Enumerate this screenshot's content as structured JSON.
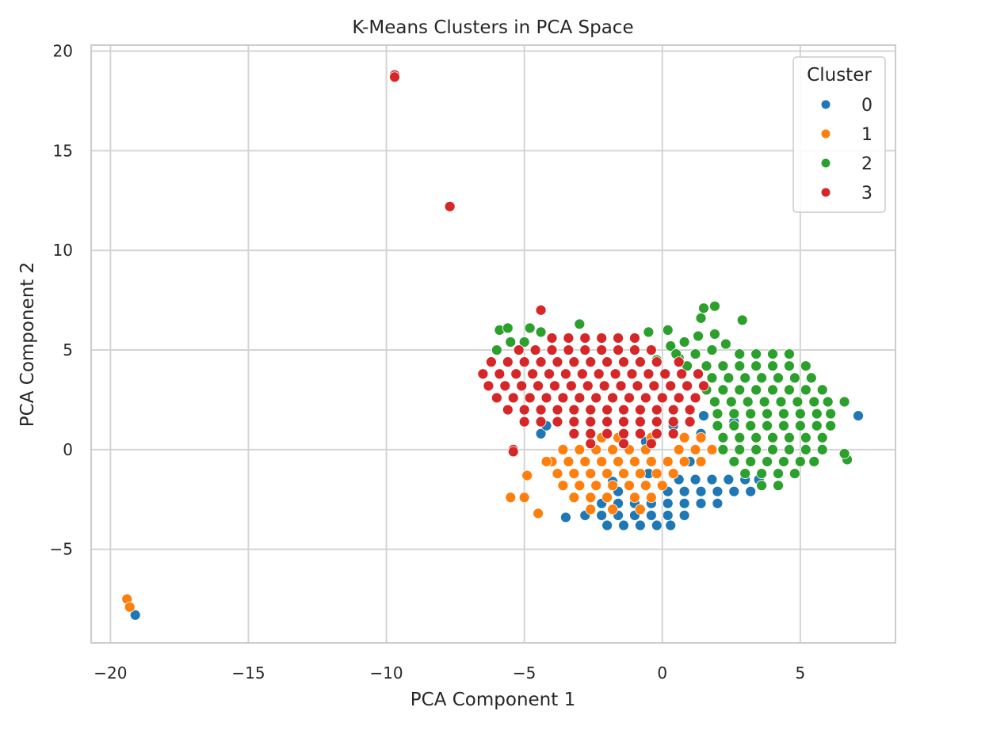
{
  "chart_data": {
    "type": "scatter",
    "title": "K-Means Clusters in PCA Space",
    "xlabel": "PCA Component 1",
    "ylabel": "PCA Component 2",
    "xlim": [
      -20.7,
      8.45
    ],
    "ylim": [
      -9.7,
      20.3
    ],
    "xticks": [
      -20,
      -15,
      -10,
      -5,
      0,
      5
    ],
    "yticks": [
      -5,
      0,
      5,
      10,
      15,
      20
    ],
    "xtick_labels": [
      "−20",
      "−15",
      "−10",
      "−5",
      "0",
      "5"
    ],
    "ytick_labels": [
      "−5",
      "0",
      "5",
      "10",
      "15",
      "20"
    ],
    "grid": true,
    "legend": {
      "title": "Cluster",
      "placement": "top-right"
    },
    "series": [
      {
        "name": "0",
        "color": "#1f77b4",
        "points": [
          [
            0.6,
            -1.5
          ],
          [
            1.2,
            -1.5
          ],
          [
            1.8,
            -1.5
          ],
          [
            2.4,
            -1.5
          ],
          [
            3.0,
            -1.5
          ],
          [
            3.5,
            -1.5
          ],
          [
            -1.6,
            -2.1
          ],
          [
            0.2,
            -2.1
          ],
          [
            0.8,
            -2.1
          ],
          [
            1.4,
            -2.1
          ],
          [
            2.0,
            -2.1
          ],
          [
            2.6,
            -2.1
          ],
          [
            3.2,
            -2.1
          ],
          [
            -2.2,
            -2.7
          ],
          [
            -1.6,
            -2.7
          ],
          [
            -1.0,
            -2.7
          ],
          [
            -0.4,
            -2.7
          ],
          [
            0.2,
            -2.7
          ],
          [
            0.8,
            -2.7
          ],
          [
            1.4,
            -2.7
          ],
          [
            2.0,
            -2.7
          ],
          [
            -2.8,
            -3.3
          ],
          [
            -2.2,
            -3.3
          ],
          [
            -1.6,
            -3.3
          ],
          [
            -1.0,
            -3.3
          ],
          [
            -0.4,
            -3.3
          ],
          [
            0.2,
            -3.3
          ],
          [
            0.8,
            -3.3
          ],
          [
            -2.0,
            -3.8
          ],
          [
            -1.4,
            -3.8
          ],
          [
            -0.8,
            -3.8
          ],
          [
            -0.2,
            -3.8
          ],
          [
            0.3,
            -3.8
          ],
          [
            -4.4,
            0.8
          ],
          [
            -4.2,
            1.2
          ],
          [
            -0.6,
            0.4
          ],
          [
            0.4,
            1.2
          ],
          [
            2.6,
            1.4
          ],
          [
            1.4,
            0.8
          ],
          [
            -3.5,
            -3.4
          ],
          [
            -1.8,
            -1.6
          ],
          [
            -0.5,
            -1.2
          ],
          [
            1.0,
            -0.6
          ],
          [
            1.5,
            1.7
          ],
          [
            -2.8,
            -0.6
          ],
          [
            7.1,
            1.7
          ],
          [
            -19.1,
            -8.3
          ]
        ]
      },
      {
        "name": "1",
        "color": "#ff7f0e",
        "points": [
          [
            -2.2,
            0.6
          ],
          [
            -1.6,
            0.6
          ],
          [
            -0.4,
            0.6
          ],
          [
            0.8,
            0.6
          ],
          [
            1.4,
            0.6
          ],
          [
            -3.6,
            0.0
          ],
          [
            -3.0,
            0.0
          ],
          [
            -2.4,
            0.0
          ],
          [
            -1.8,
            0.0
          ],
          [
            -1.2,
            0.0
          ],
          [
            -0.6,
            0.0
          ],
          [
            0.6,
            0.0
          ],
          [
            1.2,
            0.0
          ],
          [
            1.8,
            0.0
          ],
          [
            2.2,
            0.0
          ],
          [
            -4.0,
            -0.6
          ],
          [
            -3.4,
            -0.6
          ],
          [
            -2.8,
            -0.6
          ],
          [
            -2.2,
            -0.6
          ],
          [
            -1.6,
            -0.6
          ],
          [
            -1.0,
            -0.6
          ],
          [
            -0.4,
            -0.6
          ],
          [
            0.2,
            -0.6
          ],
          [
            0.8,
            -0.6
          ],
          [
            1.4,
            -0.6
          ],
          [
            -3.8,
            -1.2
          ],
          [
            -3.2,
            -1.2
          ],
          [
            -2.6,
            -1.2
          ],
          [
            -2.0,
            -1.2
          ],
          [
            -1.4,
            -1.2
          ],
          [
            -0.8,
            -1.2
          ],
          [
            -0.2,
            -1.2
          ],
          [
            0.4,
            -1.2
          ],
          [
            -3.6,
            -1.8
          ],
          [
            -3.0,
            -1.8
          ],
          [
            -2.4,
            -1.8
          ],
          [
            -1.8,
            -1.8
          ],
          [
            -1.2,
            -1.8
          ],
          [
            -0.6,
            -1.8
          ],
          [
            0.0,
            -1.8
          ],
          [
            -3.2,
            -2.4
          ],
          [
            -2.6,
            -2.4
          ],
          [
            -2.0,
            -2.4
          ],
          [
            -1.0,
            -2.4
          ],
          [
            -0.4,
            -2.4
          ],
          [
            -2.6,
            -3.0
          ],
          [
            -1.8,
            -3.0
          ],
          [
            -0.8,
            -3.0
          ],
          [
            -5.5,
            -2.4
          ],
          [
            -5.0,
            -2.4
          ],
          [
            -4.5,
            -3.2
          ],
          [
            -4.9,
            -1.3
          ],
          [
            -4.2,
            -0.6
          ],
          [
            -19.4,
            -7.5
          ],
          [
            -19.3,
            -7.9
          ]
        ]
      },
      {
        "name": "2",
        "color": "#2ca02c",
        "points": [
          [
            2.8,
            4.8
          ],
          [
            3.4,
            4.8
          ],
          [
            4.0,
            4.8
          ],
          [
            4.6,
            4.8
          ],
          [
            1.6,
            4.2
          ],
          [
            2.2,
            4.2
          ],
          [
            2.8,
            4.2
          ],
          [
            3.4,
            4.2
          ],
          [
            4.0,
            4.2
          ],
          [
            4.6,
            4.2
          ],
          [
            5.2,
            4.2
          ],
          [
            1.8,
            3.6
          ],
          [
            2.4,
            3.6
          ],
          [
            3.0,
            3.6
          ],
          [
            3.6,
            3.6
          ],
          [
            4.2,
            3.6
          ],
          [
            4.8,
            3.6
          ],
          [
            5.4,
            3.6
          ],
          [
            1.6,
            3.0
          ],
          [
            2.2,
            3.0
          ],
          [
            2.8,
            3.0
          ],
          [
            3.4,
            3.0
          ],
          [
            4.0,
            3.0
          ],
          [
            4.6,
            3.0
          ],
          [
            5.2,
            3.0
          ],
          [
            5.8,
            3.0
          ],
          [
            1.9,
            2.4
          ],
          [
            2.5,
            2.4
          ],
          [
            3.1,
            2.4
          ],
          [
            3.7,
            2.4
          ],
          [
            4.3,
            2.4
          ],
          [
            4.9,
            2.4
          ],
          [
            5.5,
            2.4
          ],
          [
            6.0,
            2.4
          ],
          [
            2.0,
            1.8
          ],
          [
            2.6,
            1.8
          ],
          [
            3.2,
            1.8
          ],
          [
            3.8,
            1.8
          ],
          [
            4.4,
            1.8
          ],
          [
            5.0,
            1.8
          ],
          [
            5.6,
            1.8
          ],
          [
            6.1,
            1.8
          ],
          [
            2.0,
            1.2
          ],
          [
            2.6,
            1.2
          ],
          [
            3.2,
            1.2
          ],
          [
            3.8,
            1.2
          ],
          [
            4.4,
            1.2
          ],
          [
            5.0,
            1.2
          ],
          [
            5.6,
            1.2
          ],
          [
            6.1,
            1.2
          ],
          [
            2.2,
            0.6
          ],
          [
            2.8,
            0.6
          ],
          [
            3.4,
            0.6
          ],
          [
            4.0,
            0.6
          ],
          [
            4.6,
            0.6
          ],
          [
            5.2,
            0.6
          ],
          [
            5.8,
            0.6
          ],
          [
            2.2,
            0.0
          ],
          [
            2.8,
            0.0
          ],
          [
            3.4,
            0.0
          ],
          [
            4.0,
            0.0
          ],
          [
            4.6,
            0.0
          ],
          [
            5.2,
            0.0
          ],
          [
            5.8,
            0.0
          ],
          [
            2.6,
            -0.6
          ],
          [
            3.2,
            -0.6
          ],
          [
            3.8,
            -0.6
          ],
          [
            4.4,
            -0.6
          ],
          [
            5.0,
            -0.6
          ],
          [
            5.5,
            -0.6
          ],
          [
            3.0,
            -1.2
          ],
          [
            3.6,
            -1.2
          ],
          [
            4.2,
            -1.2
          ],
          [
            4.8,
            -1.2
          ],
          [
            3.6,
            -1.8
          ],
          [
            4.2,
            -1.8
          ],
          [
            0.3,
            5.2
          ],
          [
            0.8,
            5.4
          ],
          [
            1.2,
            4.8
          ],
          [
            0.6,
            4.6
          ],
          [
            1.8,
            5.0
          ],
          [
            2.3,
            5.3
          ],
          [
            -0.2,
            4.5
          ],
          [
            0.9,
            4.2
          ],
          [
            -5.9,
            6.0
          ],
          [
            -5.6,
            6.1
          ],
          [
            -6.0,
            5.0
          ],
          [
            -5.5,
            5.4
          ],
          [
            -4.8,
            6.1
          ],
          [
            -4.4,
            5.9
          ],
          [
            -5.0,
            5.4
          ],
          [
            -3.0,
            6.3
          ],
          [
            -0.5,
            5.9
          ],
          [
            0.2,
            6.0
          ],
          [
            1.5,
            7.1
          ],
          [
            1.9,
            7.2
          ],
          [
            1.4,
            6.6
          ],
          [
            1.9,
            5.8
          ],
          [
            2.9,
            6.5
          ],
          [
            1.3,
            5.7
          ],
          [
            0.5,
            4.8
          ],
          [
            6.6,
            2.4
          ],
          [
            6.7,
            -0.5
          ],
          [
            6.6,
            -0.2
          ],
          [
            1.2,
            4.8
          ]
        ]
      },
      {
        "name": "3",
        "color": "#d62728",
        "points": [
          [
            -4.0,
            5.6
          ],
          [
            -3.4,
            5.6
          ],
          [
            -2.8,
            5.6
          ],
          [
            -2.2,
            5.6
          ],
          [
            -1.6,
            5.6
          ],
          [
            -1.0,
            5.6
          ],
          [
            -5.2,
            5.0
          ],
          [
            -4.6,
            5.0
          ],
          [
            -4.0,
            5.0
          ],
          [
            -3.4,
            5.0
          ],
          [
            -2.8,
            5.0
          ],
          [
            -2.2,
            5.0
          ],
          [
            -1.6,
            5.0
          ],
          [
            -1.0,
            5.0
          ],
          [
            -0.4,
            5.0
          ],
          [
            -6.2,
            4.4
          ],
          [
            -5.6,
            4.4
          ],
          [
            -5.0,
            4.4
          ],
          [
            -4.4,
            4.4
          ],
          [
            -3.8,
            4.4
          ],
          [
            -3.2,
            4.4
          ],
          [
            -2.6,
            4.4
          ],
          [
            -2.0,
            4.4
          ],
          [
            -1.4,
            4.4
          ],
          [
            -0.8,
            4.4
          ],
          [
            -0.2,
            4.4
          ],
          [
            0.6,
            4.4
          ],
          [
            -6.5,
            3.8
          ],
          [
            -5.9,
            3.8
          ],
          [
            -5.3,
            3.8
          ],
          [
            -4.7,
            3.8
          ],
          [
            -4.1,
            3.8
          ],
          [
            -3.5,
            3.8
          ],
          [
            -2.9,
            3.8
          ],
          [
            -2.3,
            3.8
          ],
          [
            -1.7,
            3.8
          ],
          [
            -1.1,
            3.8
          ],
          [
            -0.5,
            3.8
          ],
          [
            0.1,
            3.8
          ],
          [
            0.7,
            3.8
          ],
          [
            1.3,
            3.8
          ],
          [
            -6.3,
            3.2
          ],
          [
            -5.7,
            3.2
          ],
          [
            -5.1,
            3.2
          ],
          [
            -4.5,
            3.2
          ],
          [
            -3.9,
            3.2
          ],
          [
            -3.3,
            3.2
          ],
          [
            -2.7,
            3.2
          ],
          [
            -2.1,
            3.2
          ],
          [
            -1.5,
            3.2
          ],
          [
            -0.9,
            3.2
          ],
          [
            -0.3,
            3.2
          ],
          [
            0.3,
            3.2
          ],
          [
            0.9,
            3.2
          ],
          [
            1.5,
            3.2
          ],
          [
            -6.0,
            2.6
          ],
          [
            -5.4,
            2.6
          ],
          [
            -4.8,
            2.6
          ],
          [
            -4.2,
            2.6
          ],
          [
            -3.6,
            2.6
          ],
          [
            -3.0,
            2.6
          ],
          [
            -2.4,
            2.6
          ],
          [
            -1.8,
            2.6
          ],
          [
            -1.2,
            2.6
          ],
          [
            -0.6,
            2.6
          ],
          [
            0.0,
            2.6
          ],
          [
            0.6,
            2.6
          ],
          [
            1.2,
            2.6
          ],
          [
            -5.6,
            2.0
          ],
          [
            -5.0,
            2.0
          ],
          [
            -4.4,
            2.0
          ],
          [
            -3.8,
            2.0
          ],
          [
            -3.2,
            2.0
          ],
          [
            -2.6,
            2.0
          ],
          [
            -2.0,
            2.0
          ],
          [
            -1.4,
            2.0
          ],
          [
            -0.8,
            2.0
          ],
          [
            -0.2,
            2.0
          ],
          [
            0.4,
            2.0
          ],
          [
            1.0,
            2.0
          ],
          [
            -5.0,
            1.4
          ],
          [
            -4.4,
            1.4
          ],
          [
            -3.8,
            1.4
          ],
          [
            -3.2,
            1.4
          ],
          [
            -2.6,
            1.4
          ],
          [
            -2.0,
            1.4
          ],
          [
            -1.4,
            1.4
          ],
          [
            -0.8,
            1.4
          ],
          [
            -0.2,
            1.4
          ],
          [
            0.4,
            1.4
          ],
          [
            1.0,
            1.4
          ],
          [
            -3.2,
            0.8
          ],
          [
            -2.6,
            0.8
          ],
          [
            -2.0,
            0.8
          ],
          [
            -1.4,
            0.8
          ],
          [
            -0.8,
            0.8
          ],
          [
            -0.2,
            0.8
          ],
          [
            0.4,
            0.8
          ],
          [
            -2.6,
            0.3
          ],
          [
            -1.4,
            0.3
          ],
          [
            -0.4,
            0.3
          ],
          [
            -9.7,
            18.8
          ],
          [
            -9.7,
            18.7
          ],
          [
            -7.7,
            12.2
          ],
          [
            -4.4,
            7.0
          ],
          [
            -5.4,
            0.0
          ],
          [
            -5.4,
            -0.1
          ]
        ]
      }
    ]
  }
}
